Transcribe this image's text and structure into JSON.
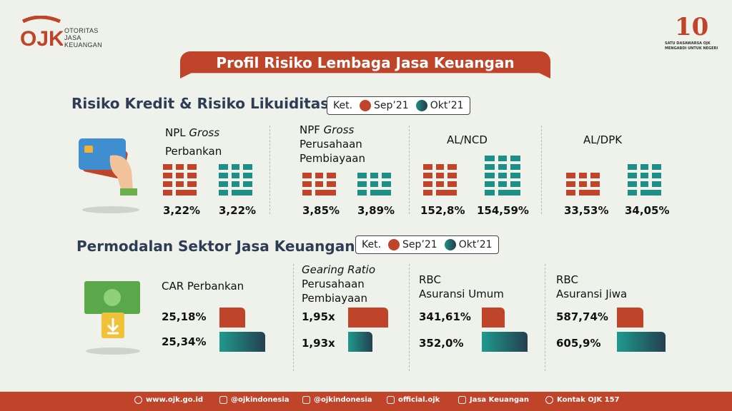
{
  "header": {
    "logo_mark": "OJK",
    "logo_lines": [
      "OTORITAS",
      "JASA",
      "KEUANGAN"
    ],
    "anniv_number": "10",
    "anniv_lines": [
      "SATU DASAWARSA OJK",
      "MENGABDI UNTUK NEGERI"
    ]
  },
  "banner": {
    "title": "Profil Risiko Lembaga Jasa Keuangan"
  },
  "section1": {
    "title": "Risiko Kredit & Risiko Likuiditas",
    "legend": {
      "ket": "Ket.",
      "sep": "Sep’21",
      "okt": "Okt’21"
    },
    "metrics": [
      {
        "line1": "NPL ",
        "line1_italic": "Gross",
        "line2": "Perbankan",
        "line3": "",
        "sep": "3,22%",
        "okt": "3,22%",
        "sep_level": 3.22,
        "okt_level": 3.22
      },
      {
        "line1": "NPF ",
        "line1_italic": "Gross",
        "line2": "Perusahaan",
        "line3": "Pembiayaan",
        "sep": "3,85%",
        "okt": "3,89%",
        "sep_level": 3.85,
        "okt_level": 3.89
      },
      {
        "line1": "AL/NCD",
        "line1_italic": "",
        "line2": "",
        "line3": "",
        "sep": "152,8%",
        "okt": "154,59%",
        "sep_level": 152.8,
        "okt_level": 154.59
      },
      {
        "line1": "AL/DPK",
        "line1_italic": "",
        "line2": "",
        "line3": "",
        "sep": "33,53%",
        "okt": "34,05%",
        "sep_level": 33.53,
        "okt_level": 34.05
      }
    ]
  },
  "section2": {
    "title": "Permodalan Sektor Jasa Keuangan",
    "legend": {
      "ket": "Ket.",
      "sep": "Sep’21",
      "okt": "Okt’21"
    },
    "metrics": [
      {
        "line1": "CAR Perbankan",
        "line1_italic": "",
        "line2": "",
        "line3": "",
        "sep": "25,18%",
        "okt": "25,34%",
        "sep_fill": 0.56,
        "okt_fill": 1.0
      },
      {
        "line1": "",
        "line1_italic": "Gearing Ratio",
        "line2": "Perusahaan",
        "line3": "Pembiayaan",
        "sep": "1,95x",
        "okt": "1,93x",
        "sep_fill": 1.0,
        "okt_fill": 0.6
      },
      {
        "line1": "RBC",
        "line1_italic": "",
        "line2": "Asuransi Umum",
        "line3": "",
        "sep": "341,61%",
        "okt": "352,0%",
        "sep_fill": 0.5,
        "okt_fill": 1.0
      },
      {
        "line1": "RBC",
        "line1_italic": "",
        "line2": "Asuransi Jiwa",
        "line3": "",
        "sep": "587,74%",
        "okt": "605,9%",
        "sep_fill": 0.55,
        "okt_fill": 1.0
      }
    ]
  },
  "footer": {
    "items": [
      {
        "icon": "globe-icon",
        "text": "www.ojk.go.id"
      },
      {
        "icon": "twitter-icon",
        "text": "@ojkindonesia"
      },
      {
        "icon": "instagram-icon",
        "text": "@ojkindonesia"
      },
      {
        "icon": "facebook-icon",
        "text": "official.ojk"
      },
      {
        "icon": "youtube-icon",
        "text": "Jasa Keuangan"
      },
      {
        "icon": "phone-icon",
        "text": "Kontak OJK 157"
      }
    ]
  },
  "colors": {
    "sep": "#c0442a",
    "okt": "#1e8f86",
    "title": "#2f3c55",
    "bg": "#eef2ea"
  }
}
